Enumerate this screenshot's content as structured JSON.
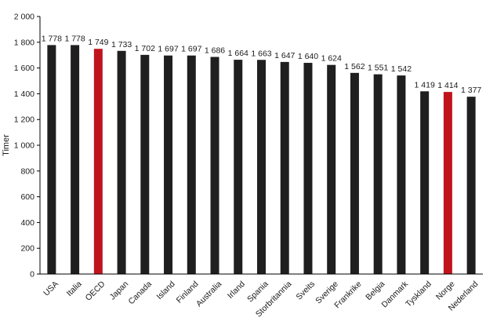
{
  "chart_data": {
    "type": "bar",
    "ylabel": "Timer",
    "ylim": [
      0,
      2000
    ],
    "yticks": [
      0,
      200,
      400,
      600,
      800,
      1000,
      1200,
      1400,
      1600,
      1800,
      2000
    ],
    "ytick_labels": [
      "0",
      "200",
      "400",
      "600",
      "800",
      "1 000",
      "1 200",
      "1 400",
      "1 600",
      "1 800",
      "2 000"
    ],
    "grid": false,
    "categories": [
      "USA",
      "Italia",
      "OECD",
      "Japan",
      "Canada",
      "Island",
      "Finland",
      "Australia",
      "Irland",
      "Spania",
      "Storbritannia",
      "Sveits",
      "Sverige",
      "Frankrike",
      "Belgia",
      "Danmark",
      "Tyskland",
      "Norge",
      "Nederland"
    ],
    "values": [
      1778,
      1778,
      1749,
      1733,
      1702,
      1697,
      1697,
      1686,
      1664,
      1663,
      1647,
      1640,
      1624,
      1562,
      1551,
      1542,
      1419,
      1414,
      1377
    ],
    "value_labels": [
      "1 778",
      "1 778",
      "1 749",
      "1 733",
      "1 702",
      "1 697",
      "1 697",
      "1 686",
      "1 664",
      "1 663",
      "1 647",
      "1 640",
      "1 624",
      "1 562",
      "1 551",
      "1 542",
      "1 419",
      "1 414",
      "1 377"
    ],
    "highlighted": [
      "OECD",
      "Norge"
    ],
    "colors": {
      "bar": "#1f1f1f",
      "highlight": "#c0141c",
      "axis": "#000000"
    }
  }
}
